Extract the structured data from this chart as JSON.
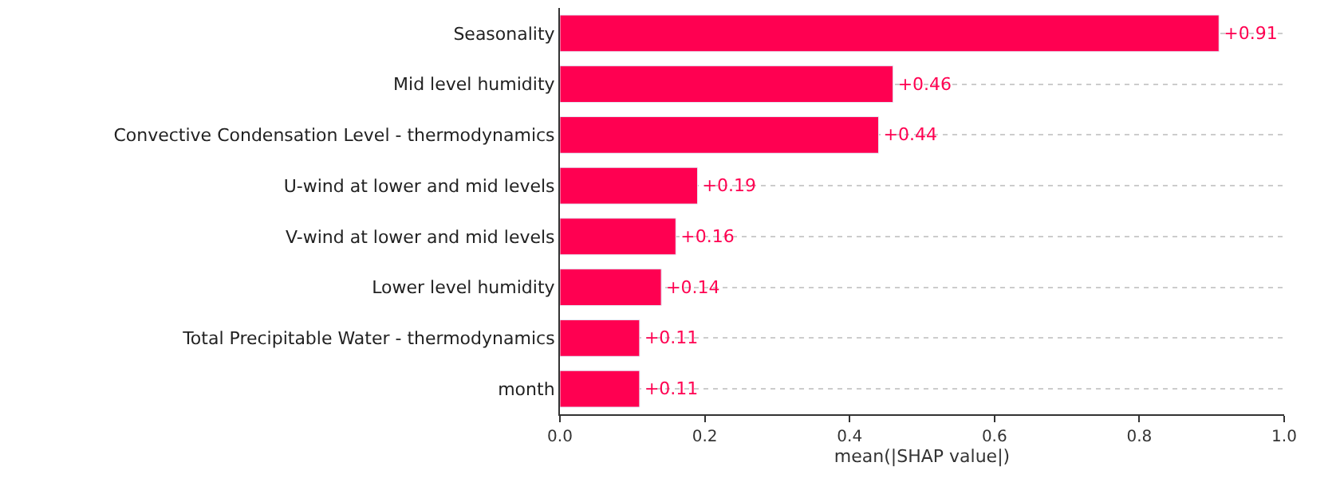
{
  "chart_data": {
    "type": "bar",
    "orientation": "horizontal",
    "xlabel": "mean(|SHAP value|)",
    "categories": [
      "Seasonality",
      "Mid level humidity",
      "Convective Condensation Level - thermodynamics",
      "U-wind at lower and mid levels",
      "V-wind at lower and mid levels",
      "Lower level humidity",
      "Total Precipitable Water - thermodynamics",
      "month"
    ],
    "values": [
      0.91,
      0.46,
      0.44,
      0.19,
      0.16,
      0.14,
      0.11,
      0.11
    ],
    "value_labels": [
      "+0.91",
      "+0.46",
      "+0.44",
      "+0.19",
      "+0.16",
      "+0.14",
      "+0.11",
      "+0.11"
    ],
    "color": "#ff0051",
    "xlim": [
      0,
      1
    ],
    "xticks": [
      {
        "value": 0,
        "label": "0.0"
      },
      {
        "value": 0.2,
        "label": "0.2"
      },
      {
        "value": 0.4,
        "label": "0.4"
      },
      {
        "value": 0.6,
        "label": "0.6"
      },
      {
        "value": 0.8,
        "label": "0.8"
      },
      {
        "value": 1,
        "label": "1.0"
      }
    ],
    "grid": "y",
    "legend": false
  }
}
